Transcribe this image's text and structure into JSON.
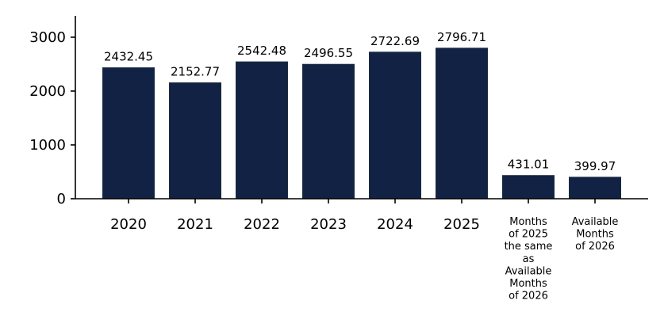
{
  "chart_data": {
    "type": "bar",
    "title": "",
    "xlabel": "",
    "ylabel": "",
    "categories": [
      "2020",
      "2021",
      "2022",
      "2023",
      "2024",
      "2025",
      "Months of 2025 the same as Available Months of 2026",
      "Available Months of 2026"
    ],
    "category_lines": [
      [
        "2020"
      ],
      [
        "2021"
      ],
      [
        "2022"
      ],
      [
        "2023"
      ],
      [
        "2024"
      ],
      [
        "2025"
      ],
      [
        "Months",
        "of 2025",
        "the same",
        "as",
        "Available",
        "Months",
        "of 2026"
      ],
      [
        "Available",
        "Months",
        "of 2026"
      ]
    ],
    "values": [
      2432.45,
      2152.77,
      2542.48,
      2496.55,
      2722.69,
      2796.71,
      431.01,
      399.97
    ],
    "data_labels": [
      "2432.45",
      "2152.77",
      "2542.48",
      "2496.55",
      "2722.69",
      "2796.71",
      "431.01",
      "399.97"
    ],
    "ylim": [
      0,
      3400
    ],
    "yticks": [
      0,
      1000,
      2000,
      3000
    ],
    "ytick_labels": [
      "0",
      "1000",
      "2000",
      "3000"
    ],
    "bar_color": "#112244",
    "grid": false,
    "legend": "none"
  }
}
